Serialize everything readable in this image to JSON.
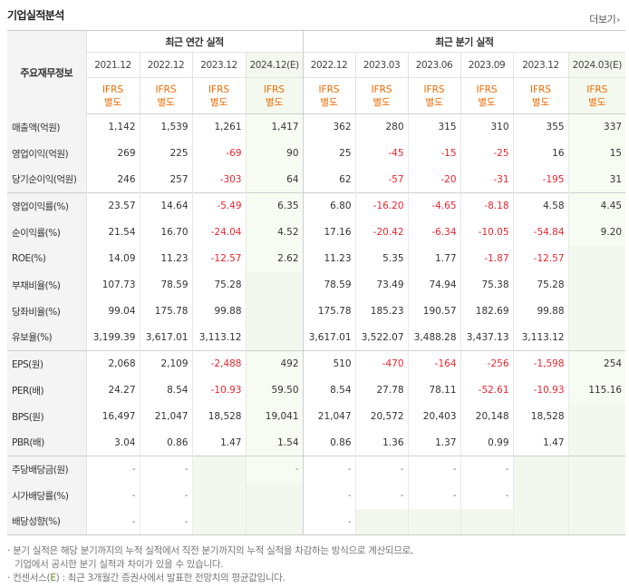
{
  "header": {
    "title": "기업실적분석",
    "more_label": "더보기",
    "more_icon": "chevron-right-icon"
  },
  "table": {
    "corner_label": "주요재무정보",
    "group_annual": "최근 연간 실적",
    "group_quarter": "최근 분기 실적",
    "periods": [
      "2021.12",
      "2022.12",
      "2023.12",
      "2024.12(E)",
      "2022.12",
      "2023.03",
      "2023.06",
      "2023.09",
      "2023.12",
      "2024.03(E)"
    ],
    "standard_top": "IFRS",
    "standard_bottom": "별도",
    "rows": [
      {
        "label": "매출액(억원)",
        "values": [
          "1,142",
          "1,539",
          "1,261",
          "1,417",
          "362",
          "280",
          "315",
          "310",
          "355",
          "337"
        ]
      },
      {
        "label": "영업이익(억원)",
        "values": [
          "269",
          "225",
          "-69",
          "90",
          "25",
          "-45",
          "-15",
          "-25",
          "16",
          "15"
        ]
      },
      {
        "label": "당기순이익(억원)",
        "values": [
          "246",
          "257",
          "-303",
          "64",
          "62",
          "-57",
          "-20",
          "-31",
          "-195",
          "31"
        ]
      },
      {
        "label": "영업이익률(%)",
        "values": [
          "23.57",
          "14.64",
          "-5.49",
          "6.35",
          "6.80",
          "-16.20",
          "-4.65",
          "-8.18",
          "4.58",
          "4.45"
        ]
      },
      {
        "label": "순이익률(%)",
        "values": [
          "21.54",
          "16.70",
          "-24.04",
          "4.52",
          "17.16",
          "-20.42",
          "-6.34",
          "-10.05",
          "-54.84",
          "9.20"
        ]
      },
      {
        "label": "ROE(%)",
        "values": [
          "14.09",
          "11.23",
          "-12.57",
          "2.62",
          "11.23",
          "5.35",
          "1.77",
          "-1.87",
          "-12.57",
          ""
        ]
      },
      {
        "label": "부채비율(%)",
        "values": [
          "107.73",
          "78.59",
          "75.28",
          "",
          "78.59",
          "73.49",
          "74.94",
          "75.38",
          "75.28",
          ""
        ]
      },
      {
        "label": "당좌비율(%)",
        "values": [
          "99.04",
          "175.78",
          "99.88",
          "",
          "175.78",
          "185.23",
          "190.57",
          "182.69",
          "99.88",
          ""
        ]
      },
      {
        "label": "유보율(%)",
        "values": [
          "3,199.39",
          "3,617.01",
          "3,113.12",
          "",
          "3,617.01",
          "3,522.07",
          "3,488.28",
          "3,437.13",
          "3,113.12",
          ""
        ]
      },
      {
        "label": "EPS(원)",
        "values": [
          "2,068",
          "2,109",
          "-2,488",
          "492",
          "510",
          "-470",
          "-164",
          "-256",
          "-1,598",
          "254"
        ]
      },
      {
        "label": "PER(배)",
        "values": [
          "24.27",
          "8.54",
          "-10.93",
          "59.50",
          "8.54",
          "27.78",
          "78.11",
          "-52.61",
          "-10.93",
          "115.16"
        ]
      },
      {
        "label": "BPS(원)",
        "values": [
          "16,497",
          "21,047",
          "18,528",
          "19,041",
          "21,047",
          "20,572",
          "20,403",
          "20,148",
          "18,528",
          ""
        ]
      },
      {
        "label": "PBR(배)",
        "values": [
          "3.04",
          "0.86",
          "1.47",
          "1.54",
          "0.86",
          "1.36",
          "1.37",
          "0.99",
          "1.47",
          ""
        ]
      },
      {
        "label": "주당배당금(원)",
        "values": [
          "-",
          "-",
          "",
          "-",
          "-",
          "-",
          "-",
          "-",
          "",
          ""
        ]
      },
      {
        "label": "시가배당률(%)",
        "values": [
          "-",
          "-",
          "",
          "",
          "-",
          "-",
          "-",
          "-",
          "",
          ""
        ]
      },
      {
        "label": "배당성향(%)",
        "values": [
          "-",
          "-",
          "",
          "",
          "-",
          "",
          "",
          "",
          "",
          ""
        ]
      }
    ]
  },
  "notes": {
    "line1": "· 분기 실적은 해당 분기까지의 누적 실적에서 직전 분기까지의 누적 실적을 차감하는 방식으로 계산되므로,",
    "line2": "기업에서 공시한 분기 실적과 차이가 있을 수 있습니다.",
    "line3_prefix": "· 컨센서스(",
    "line3_e": "E",
    "line3_suffix": ") : 최근 3개월간 증권사에서 발표한 전망치의 평균값입니다."
  },
  "colors": {
    "negative": "#e8262e",
    "ifrs": "#f06a00",
    "estimate_bg": "#f7fcf2",
    "label_bg": "#f4f4f4"
  }
}
